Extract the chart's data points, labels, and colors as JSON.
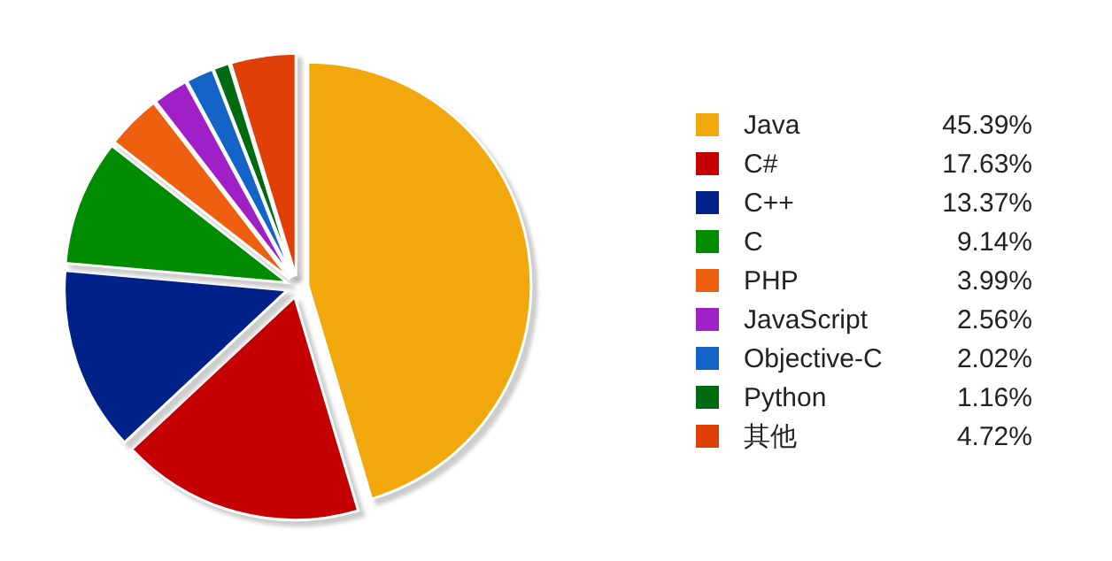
{
  "chart_data": {
    "type": "pie",
    "categories": [
      "Java",
      "C#",
      "C++",
      "C",
      "PHP",
      "JavaScript",
      "Objective-C",
      "Python",
      "其他"
    ],
    "values": [
      45.39,
      17.63,
      13.37,
      9.14,
      3.99,
      2.56,
      2.02,
      1.16,
      4.72
    ],
    "value_labels": [
      "45.39%",
      "17.63%",
      "13.37%",
      "9.14%",
      "3.99%",
      "2.56%",
      "2.02%",
      "1.16%",
      "4.72%"
    ],
    "colors": [
      "#f0a80c",
      "#c40000",
      "#002288",
      "#008c00",
      "#ee6010",
      "#a020c8",
      "#1464c8",
      "#006a10",
      "#e04008"
    ],
    "legend": "right"
  }
}
